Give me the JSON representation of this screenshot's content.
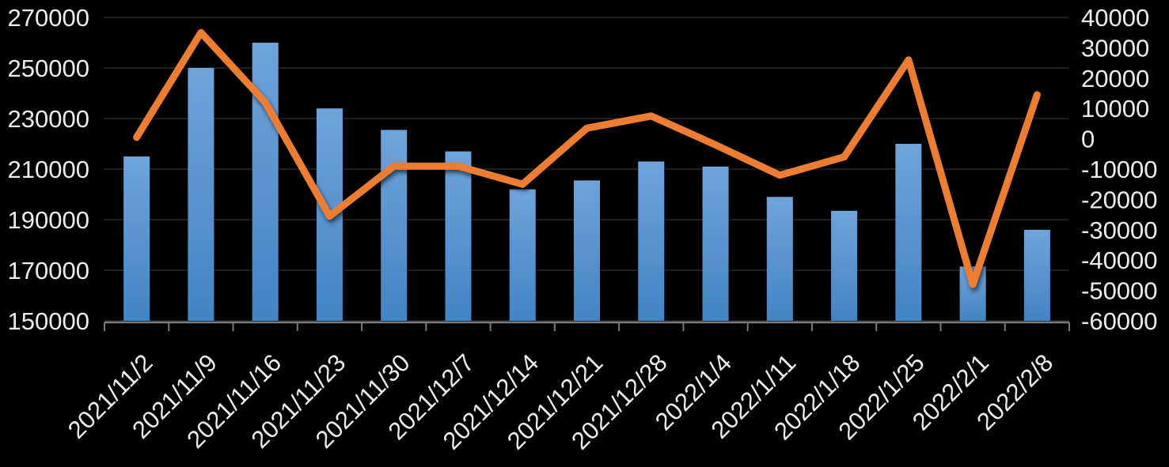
{
  "chart_data": {
    "type": "combo-bar-line",
    "title": "",
    "legend": "none",
    "grid": true,
    "categories": [
      "2021/11/2",
      "2021/11/9",
      "2021/11/16",
      "2021/11/23",
      "2021/11/30",
      "2021/12/7",
      "2021/12/14",
      "2021/12/21",
      "2021/12/28",
      "2022/1/4",
      "2022/1/11",
      "2022/1/18",
      "2022/1/25",
      "2022/2/1",
      "2022/2/8"
    ],
    "series": [
      {
        "id": "bar-series",
        "type": "bar",
        "axis": "left",
        "values": [
          215000,
          250000,
          260000,
          234000,
          225500,
          217000,
          202000,
          205500,
          213000,
          211000,
          199000,
          193500,
          220000,
          171500,
          186000
        ]
      },
      {
        "id": "line-series",
        "type": "line",
        "axis": "right",
        "values": [
          500,
          35000,
          12000,
          -25500,
          -9000,
          -9000,
          -15000,
          3500,
          7500,
          -2000,
          -12000,
          -6000,
          26000,
          -48000,
          14500
        ]
      }
    ],
    "left_axis": {
      "min": 150000,
      "max": 270000,
      "step": 20000,
      "labels": [
        "270000",
        "250000",
        "230000",
        "210000",
        "190000",
        "170000",
        "150000"
      ]
    },
    "right_axis": {
      "min": -60000,
      "max": 40000,
      "step": 10000,
      "labels": [
        "40000",
        "30000",
        "20000",
        "10000",
        "0",
        "-10000",
        "-20000",
        "-30000",
        "-40000",
        "-50000",
        "-60000"
      ]
    },
    "colors": {
      "bar_top": "#6FA3DB",
      "bar_bottom": "#4284C4",
      "line": "#ED7D31",
      "grid": "#2A2A2A",
      "axis": "#7A7A7A",
      "text": "#ECECEC",
      "background": "#000000"
    }
  }
}
